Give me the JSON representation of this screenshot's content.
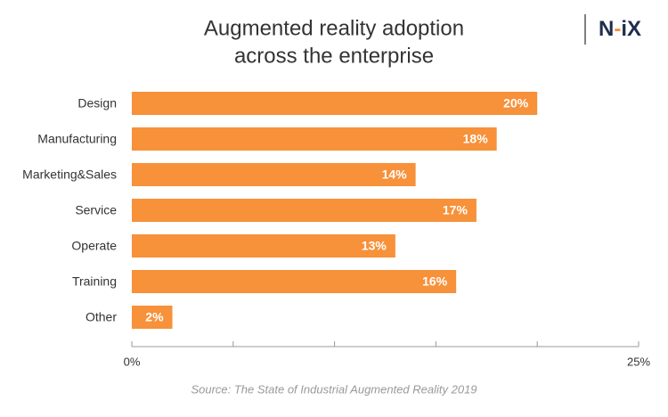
{
  "chart_data": {
    "type": "bar",
    "orientation": "horizontal",
    "title": [
      "Augmented reality adoption",
      "across the enterprise"
    ],
    "logo": [
      "N",
      "-",
      "iX"
    ],
    "source": "Source: The State of Industrial Augmented Reality 2019",
    "categories": [
      "Design",
      "Manufacturing",
      "Marketing&Sales",
      "Service",
      "Operate",
      "Training",
      "Other"
    ],
    "values": [
      20,
      18,
      14,
      17,
      13,
      16,
      2
    ],
    "value_labels": [
      "20%",
      "18%",
      "14%",
      "17%",
      "13%",
      "16%",
      "2%"
    ],
    "color": "#f7913a",
    "xlim": [
      0,
      25
    ],
    "xticks": [
      {
        "value": 0,
        "label": "0%"
      },
      {
        "value": 25,
        "label": "25%"
      }
    ],
    "minor_xticks": [
      5,
      10,
      15,
      20
    ],
    "grid": false
  }
}
